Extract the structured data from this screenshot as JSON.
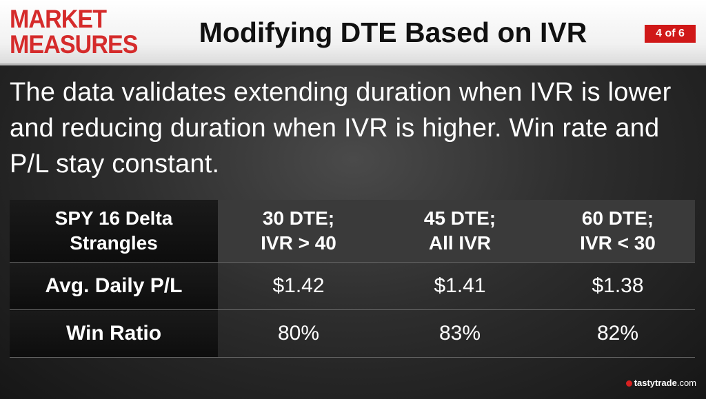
{
  "header": {
    "logo_line1": "MARKET",
    "logo_line2": "MEASURES",
    "title": "Modifying DTE Based on IVR",
    "page_indicator": "4 of 6"
  },
  "body": {
    "text": "The data validates extending duration when IVR is lower and reducing duration when IVR is higher. Win rate and P/L stay constant."
  },
  "table": {
    "corner_line1": "SPY 16 Delta",
    "corner_line2": "Strangles",
    "columns": [
      {
        "line1": "30 DTE;",
        "line2": "IVR > 40"
      },
      {
        "line1": "45 DTE;",
        "line2": "All IVR"
      },
      {
        "line1": "60 DTE;",
        "line2": "IVR < 30"
      }
    ],
    "rows": [
      {
        "label": "Avg. Daily P/L",
        "values": [
          "$1.42",
          "$1.41",
          "$1.38"
        ]
      },
      {
        "label": "Win Ratio",
        "values": [
          "80%",
          "83%",
          "82%"
        ]
      }
    ]
  },
  "footer": {
    "brand": "tastytrade",
    "brand_suffix": ".com"
  },
  "colors": {
    "accent": "#d52b2b",
    "badge": "#d01818"
  }
}
